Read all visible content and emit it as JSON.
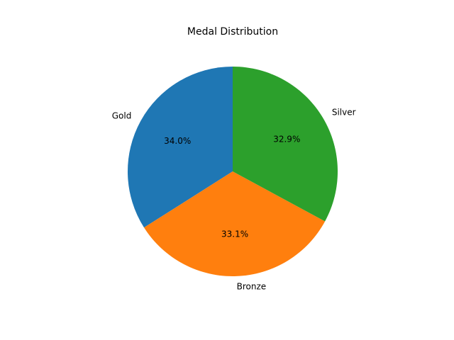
{
  "chart_data": {
    "type": "pie",
    "title": "Medal Distribution",
    "categories": [
      "Gold",
      "Bronze",
      "Silver"
    ],
    "values": [
      34.0,
      33.1,
      32.9
    ],
    "value_labels": [
      "34.0%",
      "33.1%",
      "32.9%"
    ],
    "colors": [
      "#1f77b4",
      "#ff7f0e",
      "#2ca02c"
    ],
    "start_angle_deg": 90,
    "direction": "counterclockwise",
    "legend": "none"
  }
}
